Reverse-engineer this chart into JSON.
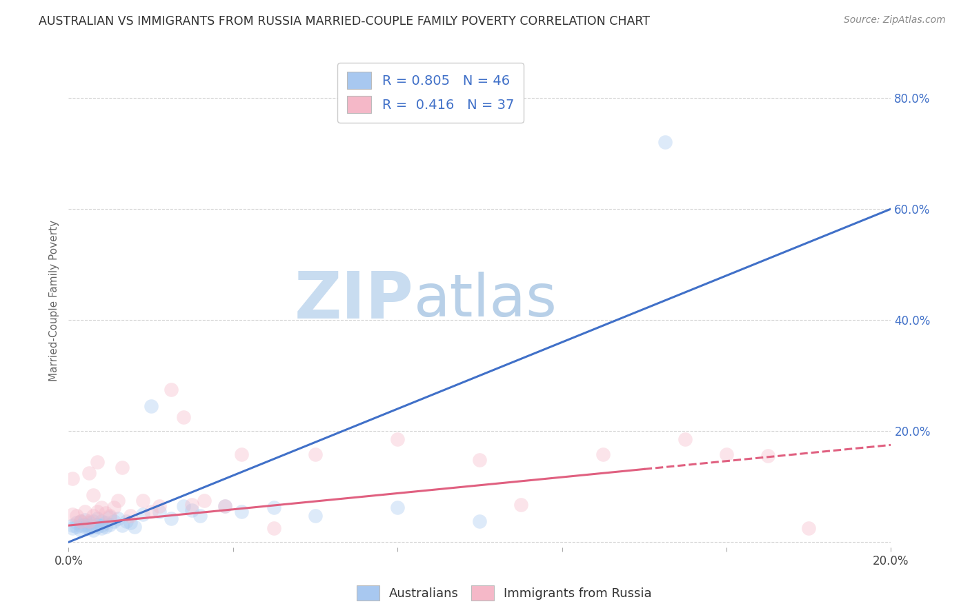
{
  "title": "AUSTRALIAN VS IMMIGRANTS FROM RUSSIA MARRIED-COUPLE FAMILY POVERTY CORRELATION CHART",
  "source": "Source: ZipAtlas.com",
  "ylabel": "Married-Couple Family Poverty",
  "xlim": [
    0.0,
    0.2
  ],
  "ylim": [
    -0.01,
    0.88
  ],
  "x_ticks": [
    0.0,
    0.04,
    0.08,
    0.12,
    0.16,
    0.2
  ],
  "y_ticks": [
    0.0,
    0.2,
    0.4,
    0.6,
    0.8
  ],
  "right_y_tick_labels": [
    "",
    "20.0%",
    "40.0%",
    "60.0%",
    "80.0%"
  ],
  "x_tick_labels": [
    "0.0%",
    "",
    "",
    "",
    "",
    "20.0%"
  ],
  "blue_R": 0.805,
  "blue_N": 46,
  "pink_R": 0.416,
  "pink_N": 37,
  "blue_color": "#A8C8F0",
  "pink_color": "#F5B8C8",
  "blue_line_color": "#4070C8",
  "pink_line_color": "#E06080",
  "pink_line_solid_end_x": 0.14,
  "watermark_zip_color": "#C8DCF0",
  "watermark_atlas_color": "#B8D0E8",
  "background_color": "#FFFFFF",
  "grid_color": "#CCCCCC",
  "right_axis_color": "#4070C8",
  "title_color": "#333333",
  "blue_line_x0": 0.0,
  "blue_line_y0": 0.0,
  "blue_line_x1": 0.2,
  "blue_line_y1": 0.6,
  "pink_line_x0": 0.0,
  "pink_line_y0": 0.03,
  "pink_line_x1": 0.2,
  "pink_line_y1": 0.175,
  "blue_scatter_x": [
    0.001,
    0.001,
    0.002,
    0.002,
    0.003,
    0.003,
    0.003,
    0.004,
    0.004,
    0.004,
    0.005,
    0.005,
    0.005,
    0.006,
    0.006,
    0.006,
    0.007,
    0.007,
    0.007,
    0.008,
    0.008,
    0.008,
    0.009,
    0.009,
    0.01,
    0.01,
    0.011,
    0.012,
    0.013,
    0.014,
    0.015,
    0.016,
    0.018,
    0.02,
    0.022,
    0.025,
    0.028,
    0.03,
    0.032,
    0.038,
    0.042,
    0.05,
    0.06,
    0.08,
    0.1,
    0.145
  ],
  "blue_scatter_y": [
    0.03,
    0.025,
    0.035,
    0.028,
    0.03,
    0.022,
    0.038,
    0.032,
    0.028,
    0.04,
    0.025,
    0.035,
    0.03,
    0.028,
    0.038,
    0.022,
    0.032,
    0.028,
    0.042,
    0.03,
    0.038,
    0.025,
    0.035,
    0.028,
    0.032,
    0.045,
    0.038,
    0.042,
    0.03,
    0.038,
    0.035,
    0.028,
    0.05,
    0.245,
    0.055,
    0.042,
    0.065,
    0.058,
    0.048,
    0.065,
    0.055,
    0.062,
    0.048,
    0.062,
    0.038,
    0.72
  ],
  "pink_scatter_x": [
    0.001,
    0.001,
    0.002,
    0.003,
    0.004,
    0.005,
    0.005,
    0.006,
    0.006,
    0.007,
    0.007,
    0.008,
    0.009,
    0.01,
    0.011,
    0.012,
    0.013,
    0.015,
    0.018,
    0.02,
    0.022,
    0.025,
    0.028,
    0.03,
    0.033,
    0.038,
    0.042,
    0.05,
    0.06,
    0.08,
    0.1,
    0.11,
    0.13,
    0.15,
    0.16,
    0.17,
    0.18
  ],
  "pink_scatter_y": [
    0.05,
    0.115,
    0.048,
    0.038,
    0.055,
    0.038,
    0.125,
    0.048,
    0.085,
    0.055,
    0.145,
    0.062,
    0.052,
    0.048,
    0.062,
    0.075,
    0.135,
    0.048,
    0.075,
    0.055,
    0.065,
    0.275,
    0.225,
    0.068,
    0.075,
    0.065,
    0.158,
    0.025,
    0.158,
    0.185,
    0.148,
    0.068,
    0.158,
    0.185,
    0.158,
    0.155,
    0.025
  ],
  "marker_size": 220,
  "marker_alpha": 0.38,
  "line_width": 2.2
}
